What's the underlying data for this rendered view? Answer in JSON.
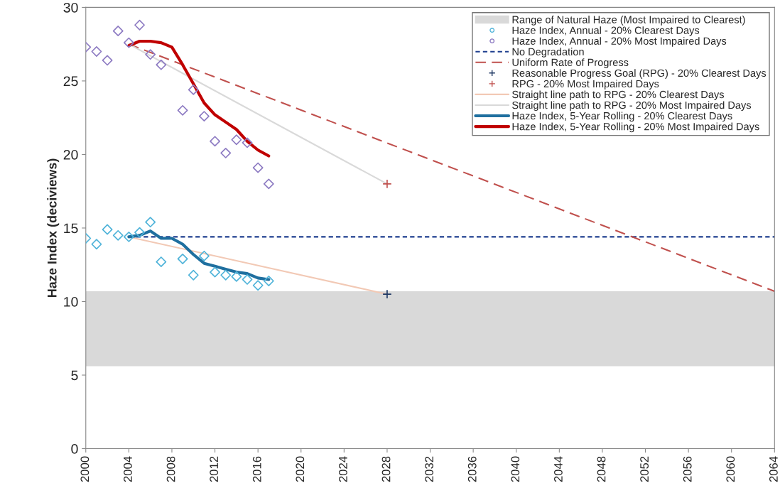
{
  "chart_data": {
    "type": "line",
    "ylabel": "Haze Index (deciviews)",
    "xlim": [
      2000,
      2064
    ],
    "xticks": [
      2000,
      2004,
      2008,
      2012,
      2016,
      2020,
      2024,
      2028,
      2032,
      2036,
      2040,
      2044,
      2048,
      2052,
      2056,
      2060,
      2064
    ],
    "ylim": [
      0,
      30
    ],
    "yticks": [
      0,
      5,
      10,
      15,
      20,
      25,
      30
    ],
    "grid": false,
    "legend": "top right",
    "bands": [
      {
        "axis": "y",
        "from": 5.6,
        "to": 10.7,
        "label": "Range of Natural Haze (Most Impaired to Clearest)",
        "color": "#d9d9d9"
      }
    ],
    "series": [
      {
        "name": "Haze Index, Annual - 20% Clearest Days",
        "type": "scatter",
        "marker": "diamond",
        "color": "#4fb3d9",
        "x": [
          2000,
          2001,
          2002,
          2003,
          2004,
          2005,
          2006,
          2007,
          2009,
          2010,
          2011,
          2012,
          2013,
          2014,
          2015,
          2016,
          2017
        ],
        "values": [
          14.3,
          13.9,
          14.9,
          14.5,
          14.4,
          14.7,
          15.4,
          12.7,
          12.9,
          11.8,
          13.1,
          12.0,
          11.8,
          11.7,
          11.5,
          11.1,
          11.4
        ]
      },
      {
        "name": "Haze Index, Annual - 20% Most Impaired Days",
        "type": "scatter",
        "marker": "diamond",
        "color": "#8e7cc3",
        "x": [
          2000,
          2001,
          2002,
          2003,
          2004,
          2005,
          2006,
          2007,
          2009,
          2010,
          2011,
          2012,
          2013,
          2014,
          2015,
          2016,
          2017
        ],
        "values": [
          27.3,
          27.0,
          26.4,
          28.4,
          27.6,
          28.8,
          26.8,
          26.1,
          23.0,
          24.4,
          22.6,
          20.9,
          20.1,
          21.0,
          20.8,
          19.1,
          18.0
        ]
      },
      {
        "name": "No Degradation",
        "line_style": "dotted",
        "color": "#1f3f8f",
        "x": [
          2004,
          2064
        ],
        "values": [
          14.4,
          14.4
        ]
      },
      {
        "name": "Uniform Rate of Progress",
        "line_style": "dashed",
        "color": "#c0504d",
        "x": [
          2004,
          2064
        ],
        "values": [
          27.5,
          10.7
        ]
      },
      {
        "name": "Reasonable Progress Goal (RPG) - 20% Clearest Days",
        "type": "scatter",
        "marker": "cross",
        "color": "#1f3864",
        "x": [
          2028
        ],
        "values": [
          10.5
        ]
      },
      {
        "name": "RPG - 20% Most Impaired Days",
        "type": "scatter",
        "marker": "cross",
        "color": "#c0504d",
        "x": [
          2028
        ],
        "values": [
          18.0
        ]
      },
      {
        "name": "Straight line path to RPG - 20% Clearest Days",
        "line_style": "solid",
        "color": "#f2c9b5",
        "x": [
          2004,
          2028
        ],
        "values": [
          14.4,
          10.5
        ]
      },
      {
        "name": "Straight line path to RPG - 20% Most Impaired Days",
        "line_style": "solid",
        "color": "#d9d9d9",
        "x": [
          2004,
          2028
        ],
        "values": [
          27.5,
          18.0
        ]
      },
      {
        "name": "Haze Index, 5-Year Rolling - 20% Clearest Days",
        "line_style": "solid",
        "color": "#1f6f9f",
        "x": [
          2004,
          2005,
          2006,
          2007,
          2008,
          2009,
          2010,
          2011,
          2012,
          2013,
          2014,
          2015,
          2016,
          2017
        ],
        "values": [
          14.4,
          14.5,
          14.8,
          14.3,
          14.3,
          13.9,
          13.2,
          12.6,
          12.4,
          12.2,
          12.0,
          11.9,
          11.6,
          11.5
        ]
      },
      {
        "name": "Haze Index, 5-Year Rolling - 20% Most Impaired Days",
        "line_style": "solid",
        "color": "#c00000",
        "x": [
          2004,
          2005,
          2006,
          2007,
          2008,
          2009,
          2010,
          2011,
          2012,
          2013,
          2014,
          2015,
          2016,
          2017
        ],
        "values": [
          27.4,
          27.7,
          27.7,
          27.6,
          27.3,
          26.1,
          24.8,
          23.5,
          22.7,
          22.2,
          21.7,
          20.9,
          20.3,
          19.9
        ]
      }
    ]
  }
}
